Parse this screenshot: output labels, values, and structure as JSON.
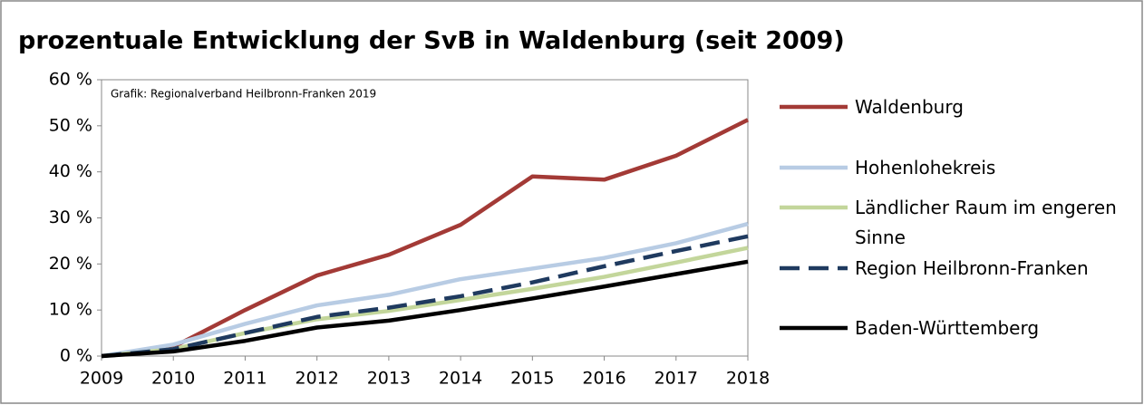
{
  "chart_data": {
    "type": "line",
    "title": "prozentuale Entwicklung der SvB in Waldenburg (seit 2009)",
    "annotation": "Grafik: Regionalverband Heilbronn-Franken 2019",
    "x": [
      2009,
      2010,
      2011,
      2012,
      2013,
      2014,
      2015,
      2016,
      2017,
      2018
    ],
    "xlim": [
      2009,
      2018
    ],
    "xticks": [
      2009,
      2010,
      2011,
      2012,
      2013,
      2014,
      2015,
      2016,
      2017,
      2018
    ],
    "ylim": [
      0,
      60
    ],
    "yticks": [
      {
        "value": 0,
        "label": "0 %"
      },
      {
        "value": 10,
        "label": "10 %"
      },
      {
        "value": 20,
        "label": "20 %"
      },
      {
        "value": 30,
        "label": "30 %"
      },
      {
        "value": 40,
        "label": "40 %"
      },
      {
        "value": 50,
        "label": "50 %"
      },
      {
        "value": 60,
        "label": "60 %"
      }
    ],
    "grid": false,
    "legend": "right",
    "series": [
      {
        "name": "Waldenburg",
        "color": "#a33a36",
        "values": [
          0,
          2,
          10,
          17.5,
          22,
          28.5,
          39,
          38.3,
          43.5,
          51.3
        ]
      },
      {
        "name": "Hohenlohekreis",
        "color": "#b8cce4",
        "values": [
          0,
          2.5,
          7,
          11,
          13.3,
          16.7,
          19,
          21.3,
          24.5,
          28.7
        ]
      },
      {
        "name": "Ländlicher Raum im engeren Sinne",
        "color": "#c3d69b",
        "values": [
          0,
          1.5,
          5,
          8,
          9.8,
          12.2,
          14.6,
          17.2,
          20.3,
          23.5
        ]
      },
      {
        "name": "Region Heilbronn-Franken",
        "color": "#1f3a5f",
        "dashed": true,
        "values": [
          0,
          1.5,
          5,
          8.5,
          10.5,
          13,
          16,
          19.5,
          22.8,
          26
        ]
      },
      {
        "name": "Baden-Württemberg",
        "color": "#000000",
        "values": [
          0,
          1,
          3.3,
          6.2,
          7.7,
          10,
          12.5,
          15.1,
          17.8,
          20.5
        ]
      }
    ]
  }
}
